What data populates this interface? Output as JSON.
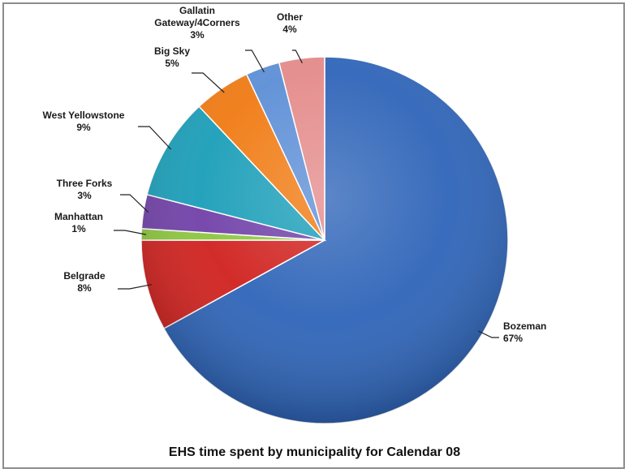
{
  "chart_data": {
    "type": "pie",
    "title": "EHS time spent by municipality for Calendar 08",
    "slices": [
      {
        "name": "Bozeman",
        "value": 67,
        "label": "67%",
        "color": "#2e64b8"
      },
      {
        "name": "Belgrade",
        "value": 8,
        "label": "8%",
        "color": "#d0211e"
      },
      {
        "name": "Manhattan",
        "value": 1,
        "label": "1%",
        "color": "#8cc63e"
      },
      {
        "name": "Three Forks",
        "value": 3,
        "label": "3%",
        "color": "#7040a8"
      },
      {
        "name": "West Yellowstone",
        "value": 9,
        "label": "9%",
        "color": "#1a9eb8"
      },
      {
        "name": "Big Sky",
        "value": 5,
        "label": "5%",
        "color": "#f07a12"
      },
      {
        "name": "Gallatin Gateway/4Corners",
        "value": 3,
        "label": "3%",
        "color": "#5c8ed6"
      },
      {
        "name": "Other",
        "value": 4,
        "label": "4%",
        "color": "#e48a8a"
      }
    ],
    "legend": "none"
  }
}
